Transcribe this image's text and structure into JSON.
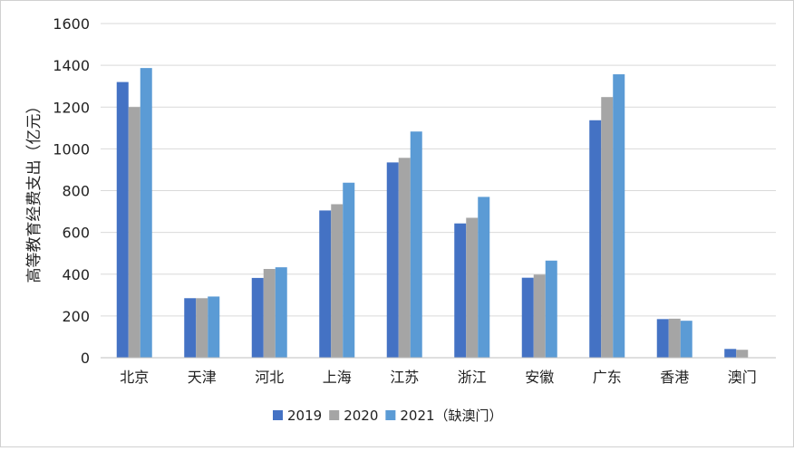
{
  "chart_data": {
    "type": "bar",
    "title": "",
    "xlabel": "",
    "ylabel": "高等教育经费支出（亿元）",
    "ylim": [
      0,
      1600
    ],
    "yticks": [
      0,
      200,
      400,
      600,
      800,
      1000,
      1200,
      1400,
      1600
    ],
    "grid": true,
    "legend_position": "bottom",
    "categories": [
      "北京",
      "天津",
      "河北",
      "上海",
      "江苏",
      "浙江",
      "安徽",
      "广东",
      "香港",
      "澳门"
    ],
    "series": [
      {
        "name": "2019",
        "color": "#4472c4",
        "values": [
          1320,
          285,
          382,
          705,
          935,
          643,
          383,
          1137,
          185,
          42
        ]
      },
      {
        "name": "2020",
        "color": "#a5a5a5",
        "values": [
          1200,
          285,
          425,
          735,
          957,
          670,
          398,
          1248,
          187,
          38
        ]
      },
      {
        "name": "2021（缺澳门）",
        "color": "#5b9bd5",
        "values": [
          1387,
          293,
          433,
          838,
          1083,
          770,
          465,
          1357,
          177,
          null
        ]
      }
    ]
  }
}
